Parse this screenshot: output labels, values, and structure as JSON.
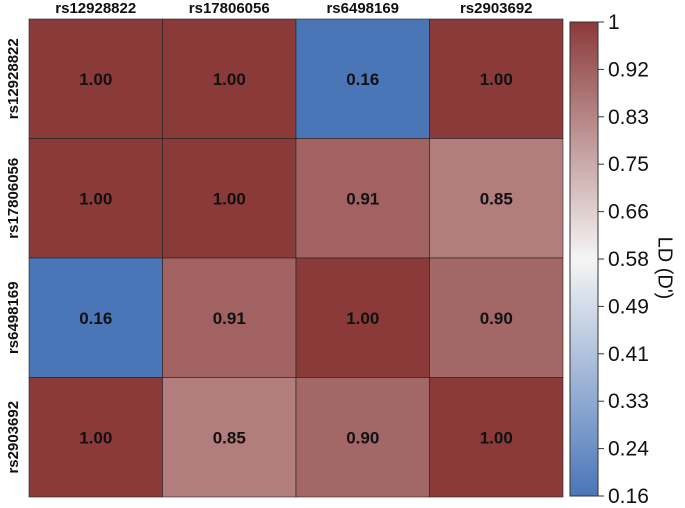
{
  "chart_data": {
    "type": "heatmap",
    "title": "",
    "columns": [
      "rs12928822",
      "rs17806056",
      "rs6498169",
      "rs2903692"
    ],
    "rows": [
      "rs12928822",
      "rs17806056",
      "rs6498169",
      "rs2903692"
    ],
    "values": [
      [
        1.0,
        1.0,
        0.16,
        1.0
      ],
      [
        1.0,
        1.0,
        0.91,
        0.85
      ],
      [
        0.16,
        0.91,
        1.0,
        0.9
      ],
      [
        1.0,
        0.85,
        0.9,
        1.0
      ]
    ],
    "cell_labels": [
      [
        "1.00",
        "1.00",
        "0.16",
        "1.00"
      ],
      [
        "1.00",
        "1.00",
        "0.91",
        "0.85"
      ],
      [
        "0.16",
        "0.91",
        "1.00",
        "0.90"
      ],
      [
        "1.00",
        "0.85",
        "0.90",
        "1.00"
      ]
    ],
    "colorbar": {
      "title": "LD (D')",
      "min": 0.16,
      "max": 1,
      "ticks": [
        "1",
        "0.92",
        "0.83",
        "0.75",
        "0.66",
        "0.58",
        "0.49",
        "0.41",
        "0.33",
        "0.24",
        "0.16"
      ],
      "colors": {
        "low": "#4a76b8",
        "mid": "#f5f5f5",
        "high": "#8b3a3a"
      }
    },
    "grid": true,
    "legend": "right"
  }
}
